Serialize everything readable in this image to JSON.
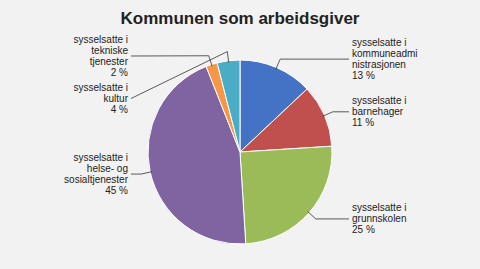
{
  "chart_data": {
    "type": "pie",
    "title": "Kommunen som arbeidsgiver",
    "categories": [
      "sysselsatte i\nkommuneadmi\nnistrasjonen\n13 %",
      "sysselsatte i\nbarnehager\n11 %",
      "sysselsatte i\ngrunnskolen\n25 %",
      "sysselsatte i\nhelse- og\nsosialtjenester\n45 %",
      "sysselsatte i\ntekniske\ntjenester\n2 %",
      "sysselsatte i\nkultur\n4 %"
    ],
    "values": [
      13,
      11,
      25,
      45,
      2,
      4
    ],
    "colors": [
      "#4472C4",
      "#C0504D",
      "#9BBB59",
      "#8064A2",
      "#F79646",
      "#4BACC6"
    ]
  }
}
